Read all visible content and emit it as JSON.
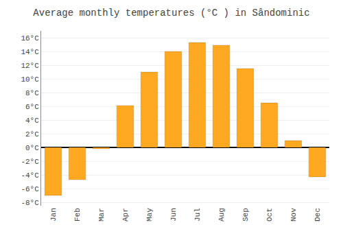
{
  "chart_data": {
    "type": "bar",
    "title": "Average monthly temperatures (°C ) in Sândominic",
    "categories": [
      "Jan",
      "Feb",
      "Mar",
      "Apr",
      "May",
      "Jun",
      "Jul",
      "Aug",
      "Sep",
      "Oct",
      "Nov",
      "Dec"
    ],
    "values": [
      -7.0,
      -4.7,
      -0.2,
      6.1,
      11.0,
      14.0,
      15.3,
      14.9,
      11.5,
      6.5,
      1.0,
      -4.3
    ],
    "color": "#FFA820",
    "ylim": [
      -8.5,
      17
    ],
    "yticks": [
      {
        "value": -8,
        "label": "-8°C"
      },
      {
        "value": -6,
        "label": "-6°C"
      },
      {
        "value": -4,
        "label": "-4°C"
      },
      {
        "value": -2,
        "label": "-2°C"
      },
      {
        "value": 0,
        "label": "0°C"
      },
      {
        "value": 2,
        "label": "2°C"
      },
      {
        "value": 4,
        "label": "4°C"
      },
      {
        "value": 6,
        "label": "6°C"
      },
      {
        "value": 8,
        "label": "8°C"
      },
      {
        "value": 10,
        "label": "10°C"
      },
      {
        "value": 12,
        "label": "12°C"
      },
      {
        "value": 14,
        "label": "14°C"
      },
      {
        "value": 16,
        "label": "16°C"
      }
    ],
    "grid": true
  }
}
